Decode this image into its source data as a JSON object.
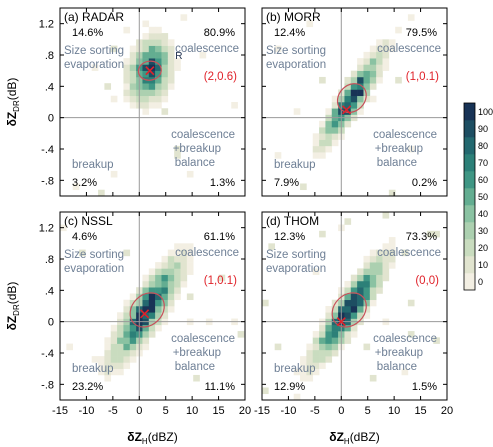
{
  "chart_data": {
    "type": "heatmap",
    "x_axis_label_main": "δZ",
    "x_axis_label_sub": "H",
    "x_axis_label_unit": "(dBZ)",
    "y_axis_label_main": "δZ",
    "y_axis_label_sub": "DR",
    "y_axis_label_unit": "(dB)",
    "xlim": [
      -15,
      20
    ],
    "ylim": [
      -1.0,
      1.4
    ],
    "x_ticks": [
      -15,
      -10,
      -5,
      0,
      5,
      10,
      15,
      20
    ],
    "x_tick_labels": [
      "-15",
      "-10",
      "-5",
      "0",
      "5",
      "10",
      "15",
      "20"
    ],
    "y_ticks": [
      -0.8,
      -0.4,
      0,
      0.4,
      0.8,
      1.2
    ],
    "y_tick_labels": [
      "-.8",
      "-.4",
      "0",
      ".4",
      ".8",
      "1.2"
    ],
    "colorbar": {
      "ticks": [
        0,
        10,
        20,
        30,
        40,
        50,
        60,
        70,
        80,
        90,
        100
      ],
      "tick_labels": [
        "0",
        "10",
        "20",
        "30",
        "40",
        "50",
        "60",
        "70",
        "80",
        "90",
        "100"
      ],
      "colors": [
        "#f3efe3",
        "#e1e4cf",
        "#c9dcbf",
        "#acd0b0",
        "#8ac2a2",
        "#63ad91",
        "#3f9684",
        "#2c8078",
        "#23686f",
        "#1d4e62",
        "#183356"
      ]
    },
    "quadrant_labels": {
      "size_sorting": "Size sorting",
      "evaporation": "evaporation",
      "coalescence": "coalescence",
      "breakup": "breakup",
      "coal_breakup_1": "coalescence",
      "coal_breakup_2": "+breakup",
      "coal_breakup_3": "balance"
    },
    "panels": [
      {
        "title": "(a) RADAR",
        "pct_top_left": "14.6%",
        "pct_top_right": "80.9%",
        "pct_bottom_left": "3.2%",
        "pct_bottom_right": "1.3%",
        "mode": "(2,0.6)",
        "mode_x": 2,
        "mode_y": 0.6,
        "extra_label": "R",
        "cluster": {
          "cx": 2,
          "cy": 0.6,
          "sx": 2.2,
          "sy": 0.22,
          "rho": 0.2,
          "peak": 0.85
        },
        "scatter_seed": 11,
        "scatter_count": 55
      },
      {
        "title": "(b) MORR",
        "pct_top_left": "12.4%",
        "pct_top_right": "79.5%",
        "pct_bottom_left": "7.9%",
        "pct_bottom_right": "0.2%",
        "mode": "(1,0.1)",
        "mode_x": 1,
        "mode_y": 0.1,
        "extra_label": "",
        "cluster": {
          "cx": 2,
          "cy": 0.25,
          "sx": 3.0,
          "sy": 0.3,
          "rho": 0.9,
          "peak": 1.0
        },
        "scatter_seed": 23,
        "scatter_count": 30
      },
      {
        "title": "(c) NSSL",
        "pct_top_left": "4.6%",
        "pct_top_right": "61.1%",
        "pct_bottom_left": "23.2%",
        "pct_bottom_right": "11.1%",
        "mode": "(1,0.1)",
        "mode_x": 1,
        "mode_y": 0.1,
        "extra_label": "",
        "cluster": {
          "cx": 1.5,
          "cy": 0.15,
          "sx": 3.6,
          "sy": 0.35,
          "rho": 0.85,
          "peak": 0.9
        },
        "scatter_seed": 37,
        "scatter_count": 35
      },
      {
        "title": "(d) THOM",
        "pct_top_left": "12.3%",
        "pct_top_right": "73.3%",
        "pct_bottom_left": "12.9%",
        "pct_bottom_right": "1.5%",
        "mode": "(0,0)",
        "mode_x": 0,
        "mode_y": 0,
        "extra_label": "",
        "cluster": {
          "cx": 1.5,
          "cy": 0.15,
          "sx": 3.6,
          "sy": 0.35,
          "rho": 0.9,
          "peak": 1.0
        },
        "scatter_seed": 41,
        "scatter_count": 30
      }
    ],
    "text_color": "#6e7f95",
    "mode_color": "#e0222a",
    "contour_color": "#c8505a"
  }
}
